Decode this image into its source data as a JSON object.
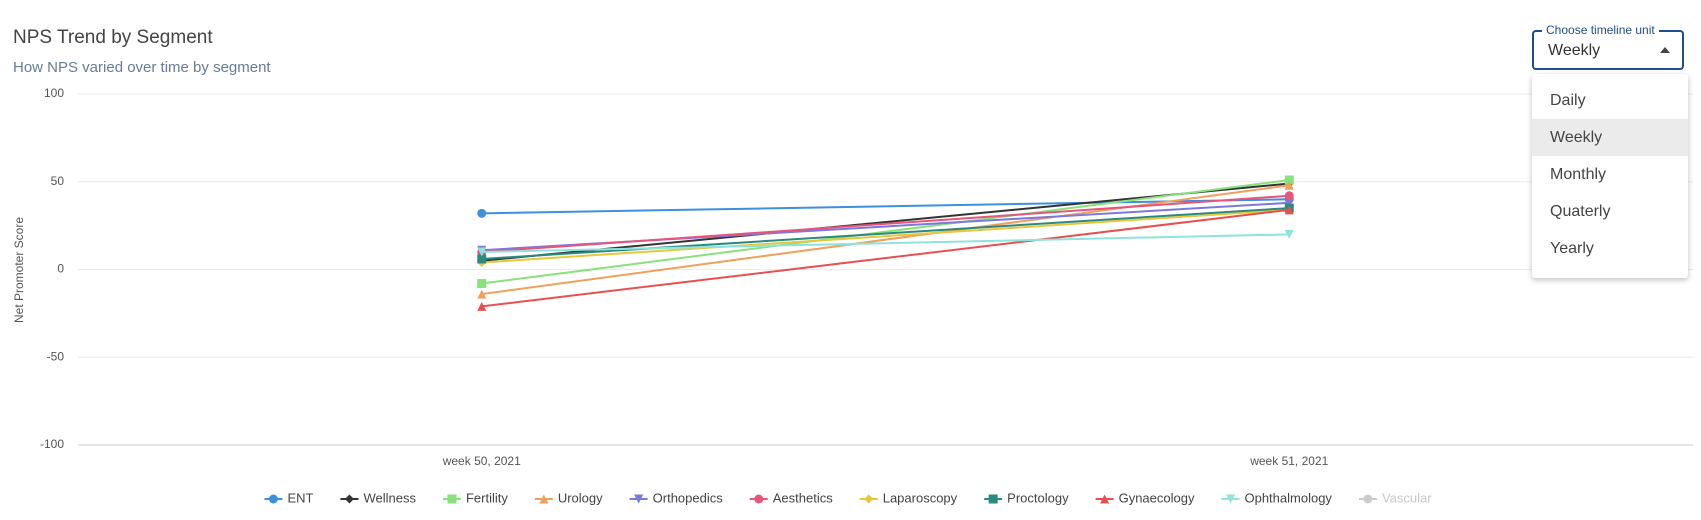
{
  "chart_data": {
    "type": "line",
    "title": "NPS Trend by Segment",
    "subtitle": "How NPS varied over time by segment",
    "y_label": "Net Promoter Score",
    "categories": [
      "week 50, 2021",
      "week 51, 2021"
    ],
    "ylim": [
      -100,
      100
    ],
    "yticks": [
      -100,
      -50,
      0,
      50,
      100
    ],
    "grid": true,
    "legend": "bottom",
    "series": [
      {
        "name": "ENT",
        "color": "#3d8fe0",
        "marker": "circle",
        "values": [
          32,
          40
        ]
      },
      {
        "name": "Wellness",
        "color": "#333333",
        "marker": "diamond",
        "values": [
          5,
          49
        ]
      },
      {
        "name": "Fertility",
        "color": "#86e27a",
        "marker": "square",
        "values": [
          -8,
          51
        ]
      },
      {
        "name": "Urology",
        "color": "#f0a05a",
        "marker": "triangle",
        "values": [
          -14,
          48
        ]
      },
      {
        "name": "Orthopedics",
        "color": "#7b78e0",
        "marker": "triangle-down",
        "values": [
          11,
          38
        ]
      },
      {
        "name": "Aesthetics",
        "color": "#e8547a",
        "marker": "circle",
        "values": [
          10,
          42
        ]
      },
      {
        "name": "Laparoscopy",
        "color": "#e8c83a",
        "marker": "diamond",
        "values": [
          4,
          34
        ]
      },
      {
        "name": "Proctology",
        "color": "#2a8a80",
        "marker": "square",
        "values": [
          6,
          35
        ]
      },
      {
        "name": "Gynaecology",
        "color": "#e85050",
        "marker": "triangle",
        "values": [
          -21,
          34
        ]
      },
      {
        "name": "Ophthalmology",
        "color": "#8ee3dc",
        "marker": "triangle-down",
        "values": [
          10,
          20
        ]
      },
      {
        "name": "Vascular",
        "color": "#cccccc",
        "marker": "circle",
        "hidden": true,
        "values": [
          null,
          null
        ]
      }
    ]
  },
  "dropdown": {
    "label": "Choose timeline unit",
    "value": "Weekly",
    "options": [
      "Daily",
      "Weekly",
      "Monthly",
      "Quaterly",
      "Yearly"
    ],
    "selected": 1
  }
}
